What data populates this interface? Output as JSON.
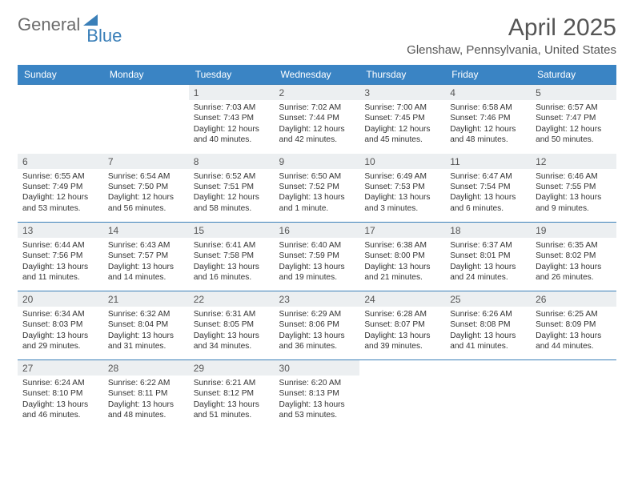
{
  "logo": {
    "text1": "General",
    "text2": "Blue"
  },
  "title": "April 2025",
  "location": "Glenshaw, Pennsylvania, United States",
  "colors": {
    "header_bg": "#3a84c4",
    "header_text": "#ffffff",
    "rule": "#3a7fb8",
    "daynum_bg": "#eceff1",
    "body_text": "#333333",
    "title_text": "#555555",
    "logo_gray": "#6b6b6b",
    "logo_blue": "#3a7fb8",
    "background": "#ffffff"
  },
  "typography": {
    "title_fontsize": 30,
    "location_fontsize": 15,
    "dayhead_fontsize": 12,
    "daynum_fontsize": 12,
    "body_fontsize": 10.2
  },
  "daynames": [
    "Sunday",
    "Monday",
    "Tuesday",
    "Wednesday",
    "Thursday",
    "Friday",
    "Saturday"
  ],
  "weeks": [
    [
      null,
      null,
      {
        "n": "1",
        "sr": "Sunrise: 7:03 AM",
        "ss": "Sunset: 7:43 PM",
        "dl": "Daylight: 12 hours and 40 minutes."
      },
      {
        "n": "2",
        "sr": "Sunrise: 7:02 AM",
        "ss": "Sunset: 7:44 PM",
        "dl": "Daylight: 12 hours and 42 minutes."
      },
      {
        "n": "3",
        "sr": "Sunrise: 7:00 AM",
        "ss": "Sunset: 7:45 PM",
        "dl": "Daylight: 12 hours and 45 minutes."
      },
      {
        "n": "4",
        "sr": "Sunrise: 6:58 AM",
        "ss": "Sunset: 7:46 PM",
        "dl": "Daylight: 12 hours and 48 minutes."
      },
      {
        "n": "5",
        "sr": "Sunrise: 6:57 AM",
        "ss": "Sunset: 7:47 PM",
        "dl": "Daylight: 12 hours and 50 minutes."
      }
    ],
    [
      {
        "n": "6",
        "sr": "Sunrise: 6:55 AM",
        "ss": "Sunset: 7:49 PM",
        "dl": "Daylight: 12 hours and 53 minutes."
      },
      {
        "n": "7",
        "sr": "Sunrise: 6:54 AM",
        "ss": "Sunset: 7:50 PM",
        "dl": "Daylight: 12 hours and 56 minutes."
      },
      {
        "n": "8",
        "sr": "Sunrise: 6:52 AM",
        "ss": "Sunset: 7:51 PM",
        "dl": "Daylight: 12 hours and 58 minutes."
      },
      {
        "n": "9",
        "sr": "Sunrise: 6:50 AM",
        "ss": "Sunset: 7:52 PM",
        "dl": "Daylight: 13 hours and 1 minute."
      },
      {
        "n": "10",
        "sr": "Sunrise: 6:49 AM",
        "ss": "Sunset: 7:53 PM",
        "dl": "Daylight: 13 hours and 3 minutes."
      },
      {
        "n": "11",
        "sr": "Sunrise: 6:47 AM",
        "ss": "Sunset: 7:54 PM",
        "dl": "Daylight: 13 hours and 6 minutes."
      },
      {
        "n": "12",
        "sr": "Sunrise: 6:46 AM",
        "ss": "Sunset: 7:55 PM",
        "dl": "Daylight: 13 hours and 9 minutes."
      }
    ],
    [
      {
        "n": "13",
        "sr": "Sunrise: 6:44 AM",
        "ss": "Sunset: 7:56 PM",
        "dl": "Daylight: 13 hours and 11 minutes."
      },
      {
        "n": "14",
        "sr": "Sunrise: 6:43 AM",
        "ss": "Sunset: 7:57 PM",
        "dl": "Daylight: 13 hours and 14 minutes."
      },
      {
        "n": "15",
        "sr": "Sunrise: 6:41 AM",
        "ss": "Sunset: 7:58 PM",
        "dl": "Daylight: 13 hours and 16 minutes."
      },
      {
        "n": "16",
        "sr": "Sunrise: 6:40 AM",
        "ss": "Sunset: 7:59 PM",
        "dl": "Daylight: 13 hours and 19 minutes."
      },
      {
        "n": "17",
        "sr": "Sunrise: 6:38 AM",
        "ss": "Sunset: 8:00 PM",
        "dl": "Daylight: 13 hours and 21 minutes."
      },
      {
        "n": "18",
        "sr": "Sunrise: 6:37 AM",
        "ss": "Sunset: 8:01 PM",
        "dl": "Daylight: 13 hours and 24 minutes."
      },
      {
        "n": "19",
        "sr": "Sunrise: 6:35 AM",
        "ss": "Sunset: 8:02 PM",
        "dl": "Daylight: 13 hours and 26 minutes."
      }
    ],
    [
      {
        "n": "20",
        "sr": "Sunrise: 6:34 AM",
        "ss": "Sunset: 8:03 PM",
        "dl": "Daylight: 13 hours and 29 minutes."
      },
      {
        "n": "21",
        "sr": "Sunrise: 6:32 AM",
        "ss": "Sunset: 8:04 PM",
        "dl": "Daylight: 13 hours and 31 minutes."
      },
      {
        "n": "22",
        "sr": "Sunrise: 6:31 AM",
        "ss": "Sunset: 8:05 PM",
        "dl": "Daylight: 13 hours and 34 minutes."
      },
      {
        "n": "23",
        "sr": "Sunrise: 6:29 AM",
        "ss": "Sunset: 8:06 PM",
        "dl": "Daylight: 13 hours and 36 minutes."
      },
      {
        "n": "24",
        "sr": "Sunrise: 6:28 AM",
        "ss": "Sunset: 8:07 PM",
        "dl": "Daylight: 13 hours and 39 minutes."
      },
      {
        "n": "25",
        "sr": "Sunrise: 6:26 AM",
        "ss": "Sunset: 8:08 PM",
        "dl": "Daylight: 13 hours and 41 minutes."
      },
      {
        "n": "26",
        "sr": "Sunrise: 6:25 AM",
        "ss": "Sunset: 8:09 PM",
        "dl": "Daylight: 13 hours and 44 minutes."
      }
    ],
    [
      {
        "n": "27",
        "sr": "Sunrise: 6:24 AM",
        "ss": "Sunset: 8:10 PM",
        "dl": "Daylight: 13 hours and 46 minutes."
      },
      {
        "n": "28",
        "sr": "Sunrise: 6:22 AM",
        "ss": "Sunset: 8:11 PM",
        "dl": "Daylight: 13 hours and 48 minutes."
      },
      {
        "n": "29",
        "sr": "Sunrise: 6:21 AM",
        "ss": "Sunset: 8:12 PM",
        "dl": "Daylight: 13 hours and 51 minutes."
      },
      {
        "n": "30",
        "sr": "Sunrise: 6:20 AM",
        "ss": "Sunset: 8:13 PM",
        "dl": "Daylight: 13 hours and 53 minutes."
      },
      null,
      null,
      null
    ]
  ]
}
